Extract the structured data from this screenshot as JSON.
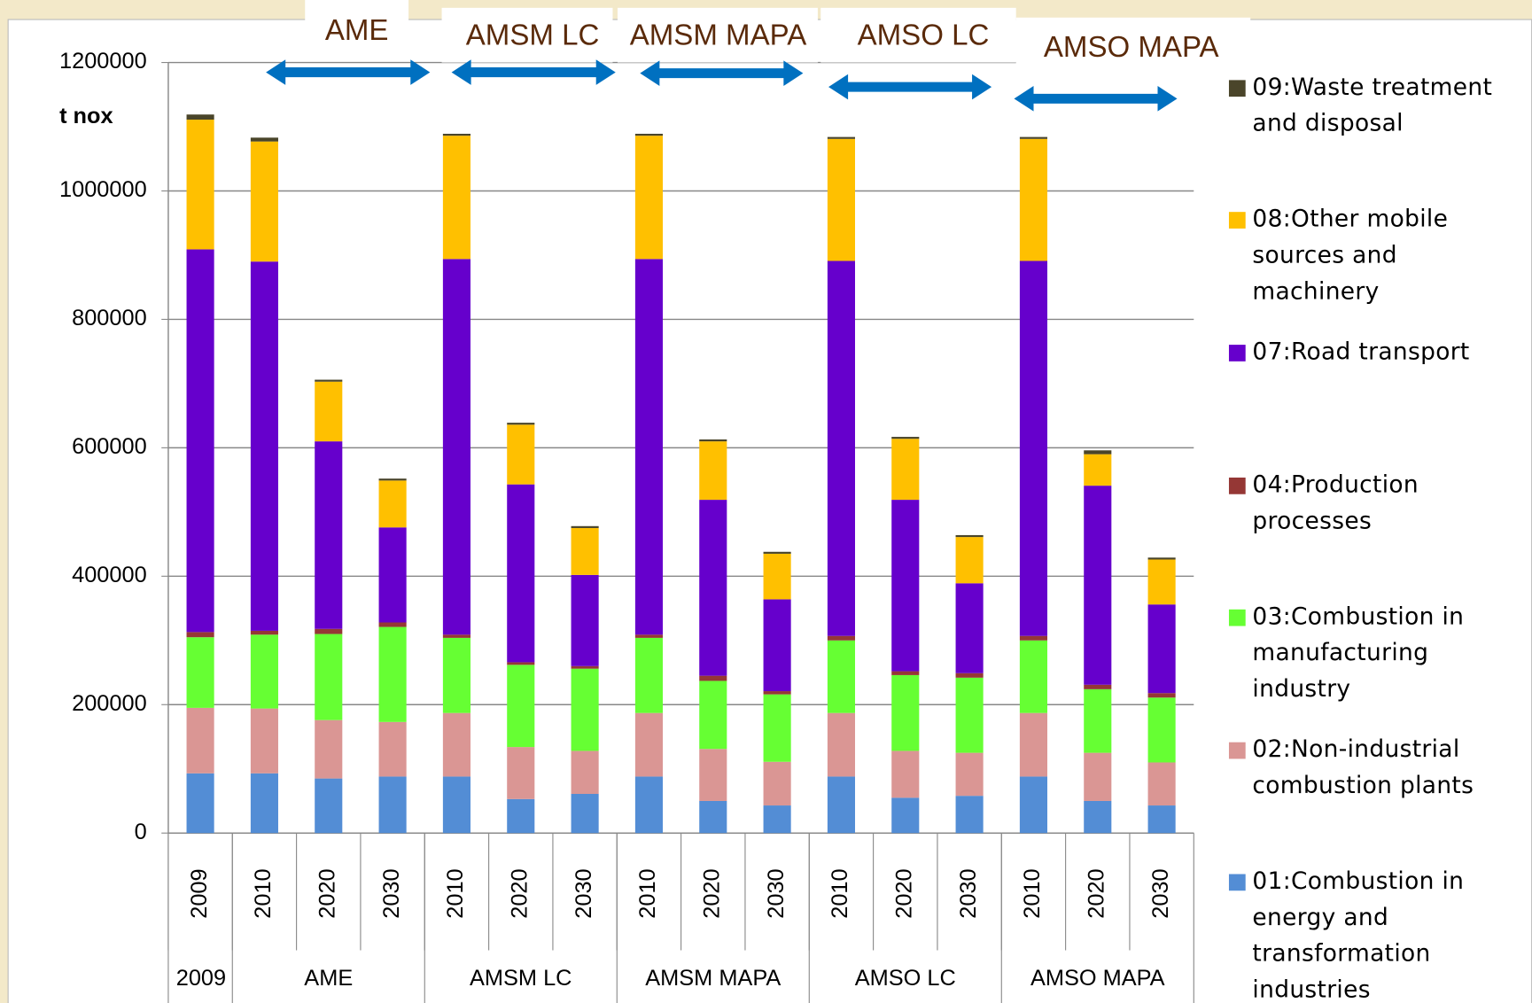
{
  "chart_data": {
    "type": "bar",
    "stacked": true,
    "y_label": "t nox",
    "annotations": [
      "AME",
      "AMSM LC",
      "AMSM MAPA",
      "AMSO LC",
      "AMSO MAPA"
    ],
    "groups": [
      {
        "name": "2009",
        "categories": [
          "2009"
        ]
      },
      {
        "name": "AME",
        "categories": [
          "2010",
          "2020",
          "2030"
        ]
      },
      {
        "name": "AMSM LC",
        "categories": [
          "2010",
          "2020",
          "2030"
        ]
      },
      {
        "name": "AMSM MAPA",
        "categories": [
          "2010",
          "2020",
          "2030"
        ]
      },
      {
        "name": "AMSO LC",
        "categories": [
          "2010",
          "2020",
          "2030"
        ]
      },
      {
        "name": "AMSO MAPA",
        "categories": [
          "2010",
          "2020",
          "2030"
        ]
      }
    ],
    "series": [
      {
        "name": "01:Combustion in energy and transformation industries",
        "color": "#538dd5",
        "values": [
          93000,
          93000,
          85000,
          88000,
          88000,
          53000,
          61000,
          88000,
          50000,
          43000,
          88000,
          55000,
          58000,
          88000,
          50000,
          43000
        ]
      },
      {
        "name": "02:Non-industrial combustion plants",
        "color": "#da9694",
        "values": [
          102000,
          101000,
          91000,
          85000,
          99000,
          81000,
          67000,
          99000,
          81000,
          68000,
          99000,
          73000,
          67000,
          99000,
          75000,
          67000
        ]
      },
      {
        "name": "03:Combustion in manufacturing industry",
        "color": "#66ff33",
        "values": [
          110000,
          115000,
          134000,
          148000,
          117000,
          128000,
          128000,
          117000,
          106000,
          105000,
          113000,
          118000,
          117000,
          113000,
          99000,
          101000
        ]
      },
      {
        "name": "04:Production processes",
        "color": "#953735",
        "values": [
          8000,
          6000,
          8000,
          7000,
          5000,
          4000,
          4000,
          5000,
          8000,
          5000,
          7000,
          6000,
          7000,
          7000,
          7000,
          7000
        ]
      },
      {
        "name": "07:Road transport",
        "color": "#6600cc",
        "values": [
          596000,
          575000,
          292000,
          148000,
          585000,
          277000,
          142000,
          585000,
          274000,
          143000,
          584000,
          267000,
          140000,
          584000,
          310000,
          138000
        ]
      },
      {
        "name": "08:Other mobile sources and machinery",
        "color": "#ffc000",
        "values": [
          202000,
          187000,
          93000,
          73000,
          192000,
          93000,
          73000,
          192000,
          91000,
          71000,
          190000,
          95000,
          72000,
          190000,
          49000,
          70000
        ]
      },
      {
        "name": "09:Waste treatment and disposal",
        "color": "#4a452a",
        "values": [
          8000,
          6000,
          3000,
          3000,
          3000,
          3000,
          3000,
          3000,
          3000,
          3000,
          3000,
          3000,
          3000,
          3000,
          6000,
          3000
        ]
      }
    ],
    "ylim": [
      0,
      1200000
    ],
    "yticks": [
      0,
      200000,
      400000,
      600000,
      800000,
      1000000,
      1200000
    ],
    "grid": true
  }
}
